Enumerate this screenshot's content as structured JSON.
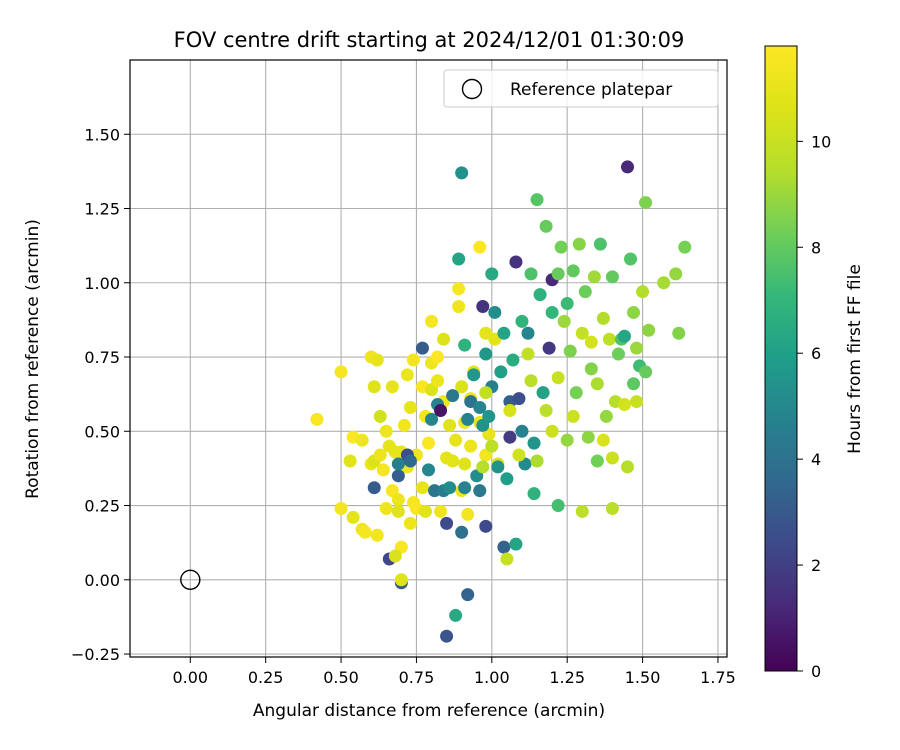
{
  "chart_data": {
    "type": "scatter",
    "title": "FOV centre drift starting at 2024/12/01 01:30:09",
    "xlabel": "Angular distance from reference (arcmin)",
    "ylabel": "Rotation from reference (arcmin)",
    "xlim": [
      -0.2,
      1.78
    ],
    "ylim": [
      -0.26,
      1.75
    ],
    "x_ticks": [
      "0.00",
      "0.25",
      "0.50",
      "0.75",
      "1.00",
      "1.25",
      "1.50",
      "1.75"
    ],
    "y_ticks": [
      "−0.25",
      "0.00",
      "0.25",
      "0.50",
      "0.75",
      "1.00",
      "1.25",
      "1.50"
    ],
    "grid": true,
    "legend": {
      "position": "top-right",
      "entries": [
        "Reference platepar"
      ]
    },
    "colorbar": {
      "label": "Hours from first FF file",
      "colormap": "viridis",
      "range": [
        0,
        11.8
      ],
      "ticks": [
        "0",
        "2",
        "4",
        "6",
        "8",
        "10"
      ]
    },
    "reference_point": {
      "x": 0.0,
      "y": 0.0,
      "label": "Reference platepar"
    },
    "points": [
      {
        "x": 0.42,
        "y": 0.54,
        "h": 11.6
      },
      {
        "x": 0.5,
        "y": 0.7,
        "h": 11.5
      },
      {
        "x": 0.5,
        "y": 0.24,
        "h": 11.4
      },
      {
        "x": 0.53,
        "y": 0.4,
        "h": 10.8
      },
      {
        "x": 0.54,
        "y": 0.48,
        "h": 11.7
      },
      {
        "x": 0.54,
        "y": 0.21,
        "h": 10.9
      },
      {
        "x": 0.57,
        "y": 0.47,
        "h": 11.2
      },
      {
        "x": 0.57,
        "y": 0.17,
        "h": 11.3
      },
      {
        "x": 0.58,
        "y": 0.16,
        "h": 11.5
      },
      {
        "x": 0.6,
        "y": 0.39,
        "h": 11.1
      },
      {
        "x": 0.6,
        "y": 0.75,
        "h": 11.3
      },
      {
        "x": 0.61,
        "y": 0.65,
        "h": 10.7
      },
      {
        "x": 0.61,
        "y": 0.4,
        "h": 10.6
      },
      {
        "x": 0.62,
        "y": 0.74,
        "h": 11.0
      },
      {
        "x": 0.62,
        "y": 0.15,
        "h": 11.4
      },
      {
        "x": 0.63,
        "y": 0.55,
        "h": 10.2
      },
      {
        "x": 0.63,
        "y": 0.42,
        "h": 11.2
      },
      {
        "x": 0.64,
        "y": 0.37,
        "h": 11.5
      },
      {
        "x": 0.65,
        "y": 0.24,
        "h": 11.3
      },
      {
        "x": 0.65,
        "y": 0.5,
        "h": 11.2
      },
      {
        "x": 0.66,
        "y": 0.45,
        "h": 10.9
      },
      {
        "x": 0.67,
        "y": 0.3,
        "h": 11.6
      },
      {
        "x": 0.67,
        "y": 0.65,
        "h": 11.0
      },
      {
        "x": 0.68,
        "y": 0.43,
        "h": 11.0
      },
      {
        "x": 0.69,
        "y": 0.27,
        "h": 11.3
      },
      {
        "x": 0.69,
        "y": 0.23,
        "h": 10.7
      },
      {
        "x": 0.7,
        "y": 0.11,
        "h": 11.6
      },
      {
        "x": 0.7,
        "y": 0.43,
        "h": 11.0
      },
      {
        "x": 0.71,
        "y": 0.52,
        "h": 11.4
      },
      {
        "x": 0.72,
        "y": 0.38,
        "h": 11.2
      },
      {
        "x": 0.72,
        "y": 0.69,
        "h": 11.1
      },
      {
        "x": 0.73,
        "y": 0.58,
        "h": 11.0
      },
      {
        "x": 0.73,
        "y": 0.19,
        "h": 11.3
      },
      {
        "x": 0.74,
        "y": 0.26,
        "h": 11.5
      },
      {
        "x": 0.74,
        "y": 0.74,
        "h": 11.4
      },
      {
        "x": 0.75,
        "y": 0.24,
        "h": 11.6
      },
      {
        "x": 0.75,
        "y": 0.42,
        "h": 11.3
      },
      {
        "x": 0.77,
        "y": 0.65,
        "h": 11.6
      },
      {
        "x": 0.77,
        "y": 0.31,
        "h": 11.0
      },
      {
        "x": 0.78,
        "y": 0.23,
        "h": 10.8
      },
      {
        "x": 0.78,
        "y": 0.55,
        "h": 11.4
      },
      {
        "x": 0.79,
        "y": 0.46,
        "h": 11.7
      },
      {
        "x": 0.8,
        "y": 0.73,
        "h": 11.2
      },
      {
        "x": 0.8,
        "y": 0.87,
        "h": 11.5
      },
      {
        "x": 0.8,
        "y": 0.64,
        "h": 10.6
      },
      {
        "x": 0.82,
        "y": 0.67,
        "h": 11.1
      },
      {
        "x": 0.82,
        "y": 0.75,
        "h": 11.8
      },
      {
        "x": 0.83,
        "y": 0.23,
        "h": 11.3
      },
      {
        "x": 0.84,
        "y": 0.81,
        "h": 10.6
      },
      {
        "x": 0.84,
        "y": 0.6,
        "h": 11.4
      },
      {
        "x": 0.85,
        "y": 0.41,
        "h": 10.9
      },
      {
        "x": 0.86,
        "y": 0.52,
        "h": 10.8
      },
      {
        "x": 0.87,
        "y": 0.4,
        "h": 10.8
      },
      {
        "x": 0.88,
        "y": 0.47,
        "h": 11.0
      },
      {
        "x": 0.89,
        "y": 0.98,
        "h": 11.5
      },
      {
        "x": 0.89,
        "y": 0.92,
        "h": 11.3
      },
      {
        "x": 0.9,
        "y": 0.65,
        "h": 10.5
      },
      {
        "x": 0.9,
        "y": 0.3,
        "h": 11.1
      },
      {
        "x": 0.91,
        "y": 0.53,
        "h": 11.3
      },
      {
        "x": 0.91,
        "y": 0.39,
        "h": 10.7
      },
      {
        "x": 0.92,
        "y": 0.22,
        "h": 11.4
      },
      {
        "x": 0.93,
        "y": 0.61,
        "h": 11.2
      },
      {
        "x": 0.93,
        "y": 0.45,
        "h": 11.1
      },
      {
        "x": 0.94,
        "y": 0.7,
        "h": 11.0
      },
      {
        "x": 0.96,
        "y": 1.12,
        "h": 11.8
      },
      {
        "x": 0.96,
        "y": 0.53,
        "h": 11.2
      },
      {
        "x": 0.98,
        "y": 0.42,
        "h": 11.4
      },
      {
        "x": 0.98,
        "y": 0.83,
        "h": 10.9
      },
      {
        "x": 0.99,
        "y": 0.49,
        "h": 11.0
      },
      {
        "x": 1.01,
        "y": 0.81,
        "h": 10.8
      },
      {
        "x": 1.02,
        "y": 0.39,
        "h": 10.6
      },
      {
        "x": 0.66,
        "y": 0.07,
        "h": 2.3
      },
      {
        "x": 0.68,
        "y": 0.08,
        "h": 10.5
      },
      {
        "x": 0.7,
        "y": -0.01,
        "h": 3.0
      },
      {
        "x": 0.7,
        "y": 0.0,
        "h": 10.7
      },
      {
        "x": 0.61,
        "y": 0.31,
        "h": 3.1
      },
      {
        "x": 0.69,
        "y": 0.35,
        "h": 3.2
      },
      {
        "x": 0.69,
        "y": 0.39,
        "h": 4.5
      },
      {
        "x": 0.72,
        "y": 0.42,
        "h": 2.6
      },
      {
        "x": 0.73,
        "y": 0.4,
        "h": 3.6
      },
      {
        "x": 0.77,
        "y": 0.78,
        "h": 3.1
      },
      {
        "x": 0.79,
        "y": 0.37,
        "h": 4.9
      },
      {
        "x": 0.8,
        "y": 0.54,
        "h": 4.8
      },
      {
        "x": 0.81,
        "y": 0.3,
        "h": 4.1
      },
      {
        "x": 0.82,
        "y": 0.59,
        "h": 4.7
      },
      {
        "x": 0.83,
        "y": 0.57,
        "h": 0.6
      },
      {
        "x": 0.84,
        "y": 0.3,
        "h": 4.5
      },
      {
        "x": 0.85,
        "y": -0.19,
        "h": 2.8
      },
      {
        "x": 0.85,
        "y": 0.19,
        "h": 2.4
      },
      {
        "x": 0.86,
        "y": 0.31,
        "h": 5.2
      },
      {
        "x": 0.87,
        "y": 0.62,
        "h": 4.2
      },
      {
        "x": 0.88,
        "y": -0.12,
        "h": 6.4
      },
      {
        "x": 0.89,
        "y": 1.08,
        "h": 6.2
      },
      {
        "x": 0.9,
        "y": 0.16,
        "h": 3.9
      },
      {
        "x": 0.9,
        "y": 1.37,
        "h": 5.3
      },
      {
        "x": 0.91,
        "y": 0.79,
        "h": 6.8
      },
      {
        "x": 0.91,
        "y": 0.31,
        "h": 4.7
      },
      {
        "x": 0.92,
        "y": -0.05,
        "h": 3.4
      },
      {
        "x": 0.92,
        "y": 0.54,
        "h": 4.7
      },
      {
        "x": 0.93,
        "y": 0.6,
        "h": 4.0
      },
      {
        "x": 0.94,
        "y": 0.69,
        "h": 5.7
      },
      {
        "x": 0.95,
        "y": 0.35,
        "h": 5.2
      },
      {
        "x": 0.96,
        "y": 0.3,
        "h": 4.3
      },
      {
        "x": 0.96,
        "y": 0.58,
        "h": 4.9
      },
      {
        "x": 0.97,
        "y": 0.92,
        "h": 1.6
      },
      {
        "x": 0.97,
        "y": 0.52,
        "h": 5.4
      },
      {
        "x": 0.98,
        "y": 0.76,
        "h": 5.6
      },
      {
        "x": 0.98,
        "y": 0.18,
        "h": 2.4
      },
      {
        "x": 0.99,
        "y": 0.55,
        "h": 5.5
      },
      {
        "x": 1.0,
        "y": 1.03,
        "h": 6.4
      },
      {
        "x": 1.0,
        "y": 0.65,
        "h": 4.6
      },
      {
        "x": 1.01,
        "y": 0.9,
        "h": 5.2
      },
      {
        "x": 1.02,
        "y": 0.38,
        "h": 5.4
      },
      {
        "x": 1.03,
        "y": 0.7,
        "h": 6.0
      },
      {
        "x": 1.04,
        "y": 0.11,
        "h": 3.4
      },
      {
        "x": 1.04,
        "y": 0.83,
        "h": 6.2
      },
      {
        "x": 1.05,
        "y": 0.34,
        "h": 5.9
      },
      {
        "x": 1.06,
        "y": 0.48,
        "h": 1.9
      },
      {
        "x": 1.06,
        "y": 0.6,
        "h": 3.2
      },
      {
        "x": 1.07,
        "y": 0.74,
        "h": 6.5
      },
      {
        "x": 1.08,
        "y": 0.12,
        "h": 6.2
      },
      {
        "x": 1.08,
        "y": 1.07,
        "h": 1.5
      },
      {
        "x": 1.09,
        "y": 0.61,
        "h": 2.6
      },
      {
        "x": 1.1,
        "y": 0.5,
        "h": 4.7
      },
      {
        "x": 1.1,
        "y": 0.87,
        "h": 6.9
      },
      {
        "x": 1.11,
        "y": 0.39,
        "h": 5.1
      },
      {
        "x": 1.12,
        "y": 0.83,
        "h": 4.9
      },
      {
        "x": 1.13,
        "y": 1.03,
        "h": 7.6
      },
      {
        "x": 1.14,
        "y": 0.29,
        "h": 6.8
      },
      {
        "x": 1.14,
        "y": 0.46,
        "h": 5.5
      },
      {
        "x": 1.15,
        "y": 1.28,
        "h": 7.8
      },
      {
        "x": 1.16,
        "y": 0.96,
        "h": 6.8
      },
      {
        "x": 1.17,
        "y": 0.63,
        "h": 6.1
      },
      {
        "x": 1.18,
        "y": 1.19,
        "h": 8.1
      },
      {
        "x": 1.19,
        "y": 0.78,
        "h": 1.8
      },
      {
        "x": 1.2,
        "y": 1.01,
        "h": 1.2
      },
      {
        "x": 1.2,
        "y": 0.9,
        "h": 7.0
      },
      {
        "x": 1.22,
        "y": 0.25,
        "h": 7.4
      },
      {
        "x": 1.22,
        "y": 1.03,
        "h": 8.1
      },
      {
        "x": 1.23,
        "y": 1.12,
        "h": 8.3
      },
      {
        "x": 1.24,
        "y": 0.87,
        "h": 9.0
      },
      {
        "x": 1.25,
        "y": 0.93,
        "h": 7.2
      },
      {
        "x": 1.26,
        "y": 0.77,
        "h": 8.5
      },
      {
        "x": 1.27,
        "y": 1.04,
        "h": 8.0
      },
      {
        "x": 1.28,
        "y": 0.63,
        "h": 8.4
      },
      {
        "x": 1.29,
        "y": 1.13,
        "h": 8.7
      },
      {
        "x": 1.3,
        "y": 0.23,
        "h": 9.7
      },
      {
        "x": 1.31,
        "y": 0.97,
        "h": 8.2
      },
      {
        "x": 1.32,
        "y": 0.48,
        "h": 8.8
      },
      {
        "x": 1.33,
        "y": 0.71,
        "h": 8.6
      },
      {
        "x": 1.34,
        "y": 1.02,
        "h": 9.1
      },
      {
        "x": 1.35,
        "y": 0.4,
        "h": 8.3
      },
      {
        "x": 1.35,
        "y": 0.66,
        "h": 9.3
      },
      {
        "x": 1.36,
        "y": 1.13,
        "h": 7.6
      },
      {
        "x": 1.37,
        "y": 0.88,
        "h": 9.4
      },
      {
        "x": 1.38,
        "y": 0.55,
        "h": 8.9
      },
      {
        "x": 1.39,
        "y": 0.81,
        "h": 9.7
      },
      {
        "x": 1.4,
        "y": 1.02,
        "h": 8.0
      },
      {
        "x": 1.4,
        "y": 0.24,
        "h": 9.6
      },
      {
        "x": 1.41,
        "y": 0.6,
        "h": 9.5
      },
      {
        "x": 1.42,
        "y": 0.76,
        "h": 8.2
      },
      {
        "x": 1.43,
        "y": 0.81,
        "h": 7.6
      },
      {
        "x": 1.44,
        "y": 0.82,
        "h": 6.3
      },
      {
        "x": 1.45,
        "y": 1.39,
        "h": 1.2
      },
      {
        "x": 1.45,
        "y": 0.38,
        "h": 9.5
      },
      {
        "x": 1.46,
        "y": 1.08,
        "h": 7.7
      },
      {
        "x": 1.47,
        "y": 0.66,
        "h": 7.9
      },
      {
        "x": 1.47,
        "y": 0.9,
        "h": 8.8
      },
      {
        "x": 1.48,
        "y": 0.78,
        "h": 9.0
      },
      {
        "x": 1.49,
        "y": 0.72,
        "h": 7.3
      },
      {
        "x": 1.5,
        "y": 0.97,
        "h": 9.4
      },
      {
        "x": 1.51,
        "y": 1.27,
        "h": 8.5
      },
      {
        "x": 1.51,
        "y": 0.7,
        "h": 8.1
      },
      {
        "x": 1.52,
        "y": 0.84,
        "h": 8.8
      },
      {
        "x": 1.61,
        "y": 1.03,
        "h": 8.9
      },
      {
        "x": 1.62,
        "y": 0.83,
        "h": 8.6
      },
      {
        "x": 1.64,
        "y": 1.12,
        "h": 8.4
      },
      {
        "x": 1.57,
        "y": 1.0,
        "h": 9.2
      },
      {
        "x": 1.25,
        "y": 0.47,
        "h": 8.9
      },
      {
        "x": 1.27,
        "y": 0.55,
        "h": 10.1
      },
      {
        "x": 1.18,
        "y": 0.57,
        "h": 9.7
      },
      {
        "x": 1.2,
        "y": 0.5,
        "h": 10.1
      },
      {
        "x": 1.15,
        "y": 0.4,
        "h": 9.3
      },
      {
        "x": 1.09,
        "y": 0.42,
        "h": 10.2
      },
      {
        "x": 1.13,
        "y": 0.67,
        "h": 9.6
      },
      {
        "x": 1.22,
        "y": 0.68,
        "h": 10.0
      },
      {
        "x": 1.3,
        "y": 0.83,
        "h": 9.9
      },
      {
        "x": 1.33,
        "y": 0.8,
        "h": 10.3
      },
      {
        "x": 1.12,
        "y": 0.76,
        "h": 9.8
      },
      {
        "x": 1.05,
        "y": 0.07,
        "h": 10.0
      },
      {
        "x": 1.06,
        "y": 0.57,
        "h": 10.4
      },
      {
        "x": 1.37,
        "y": 0.47,
        "h": 10.5
      },
      {
        "x": 1.4,
        "y": 0.41,
        "h": 10.1
      },
      {
        "x": 1.44,
        "y": 0.59,
        "h": 10.3
      },
      {
        "x": 1.48,
        "y": 0.6,
        "h": 10.0
      },
      {
        "x": 0.97,
        "y": 0.38,
        "h": 9.5
      },
      {
        "x": 1.0,
        "y": 0.45,
        "h": 9.7
      },
      {
        "x": 0.98,
        "y": 0.63,
        "h": 9.8
      }
    ]
  }
}
